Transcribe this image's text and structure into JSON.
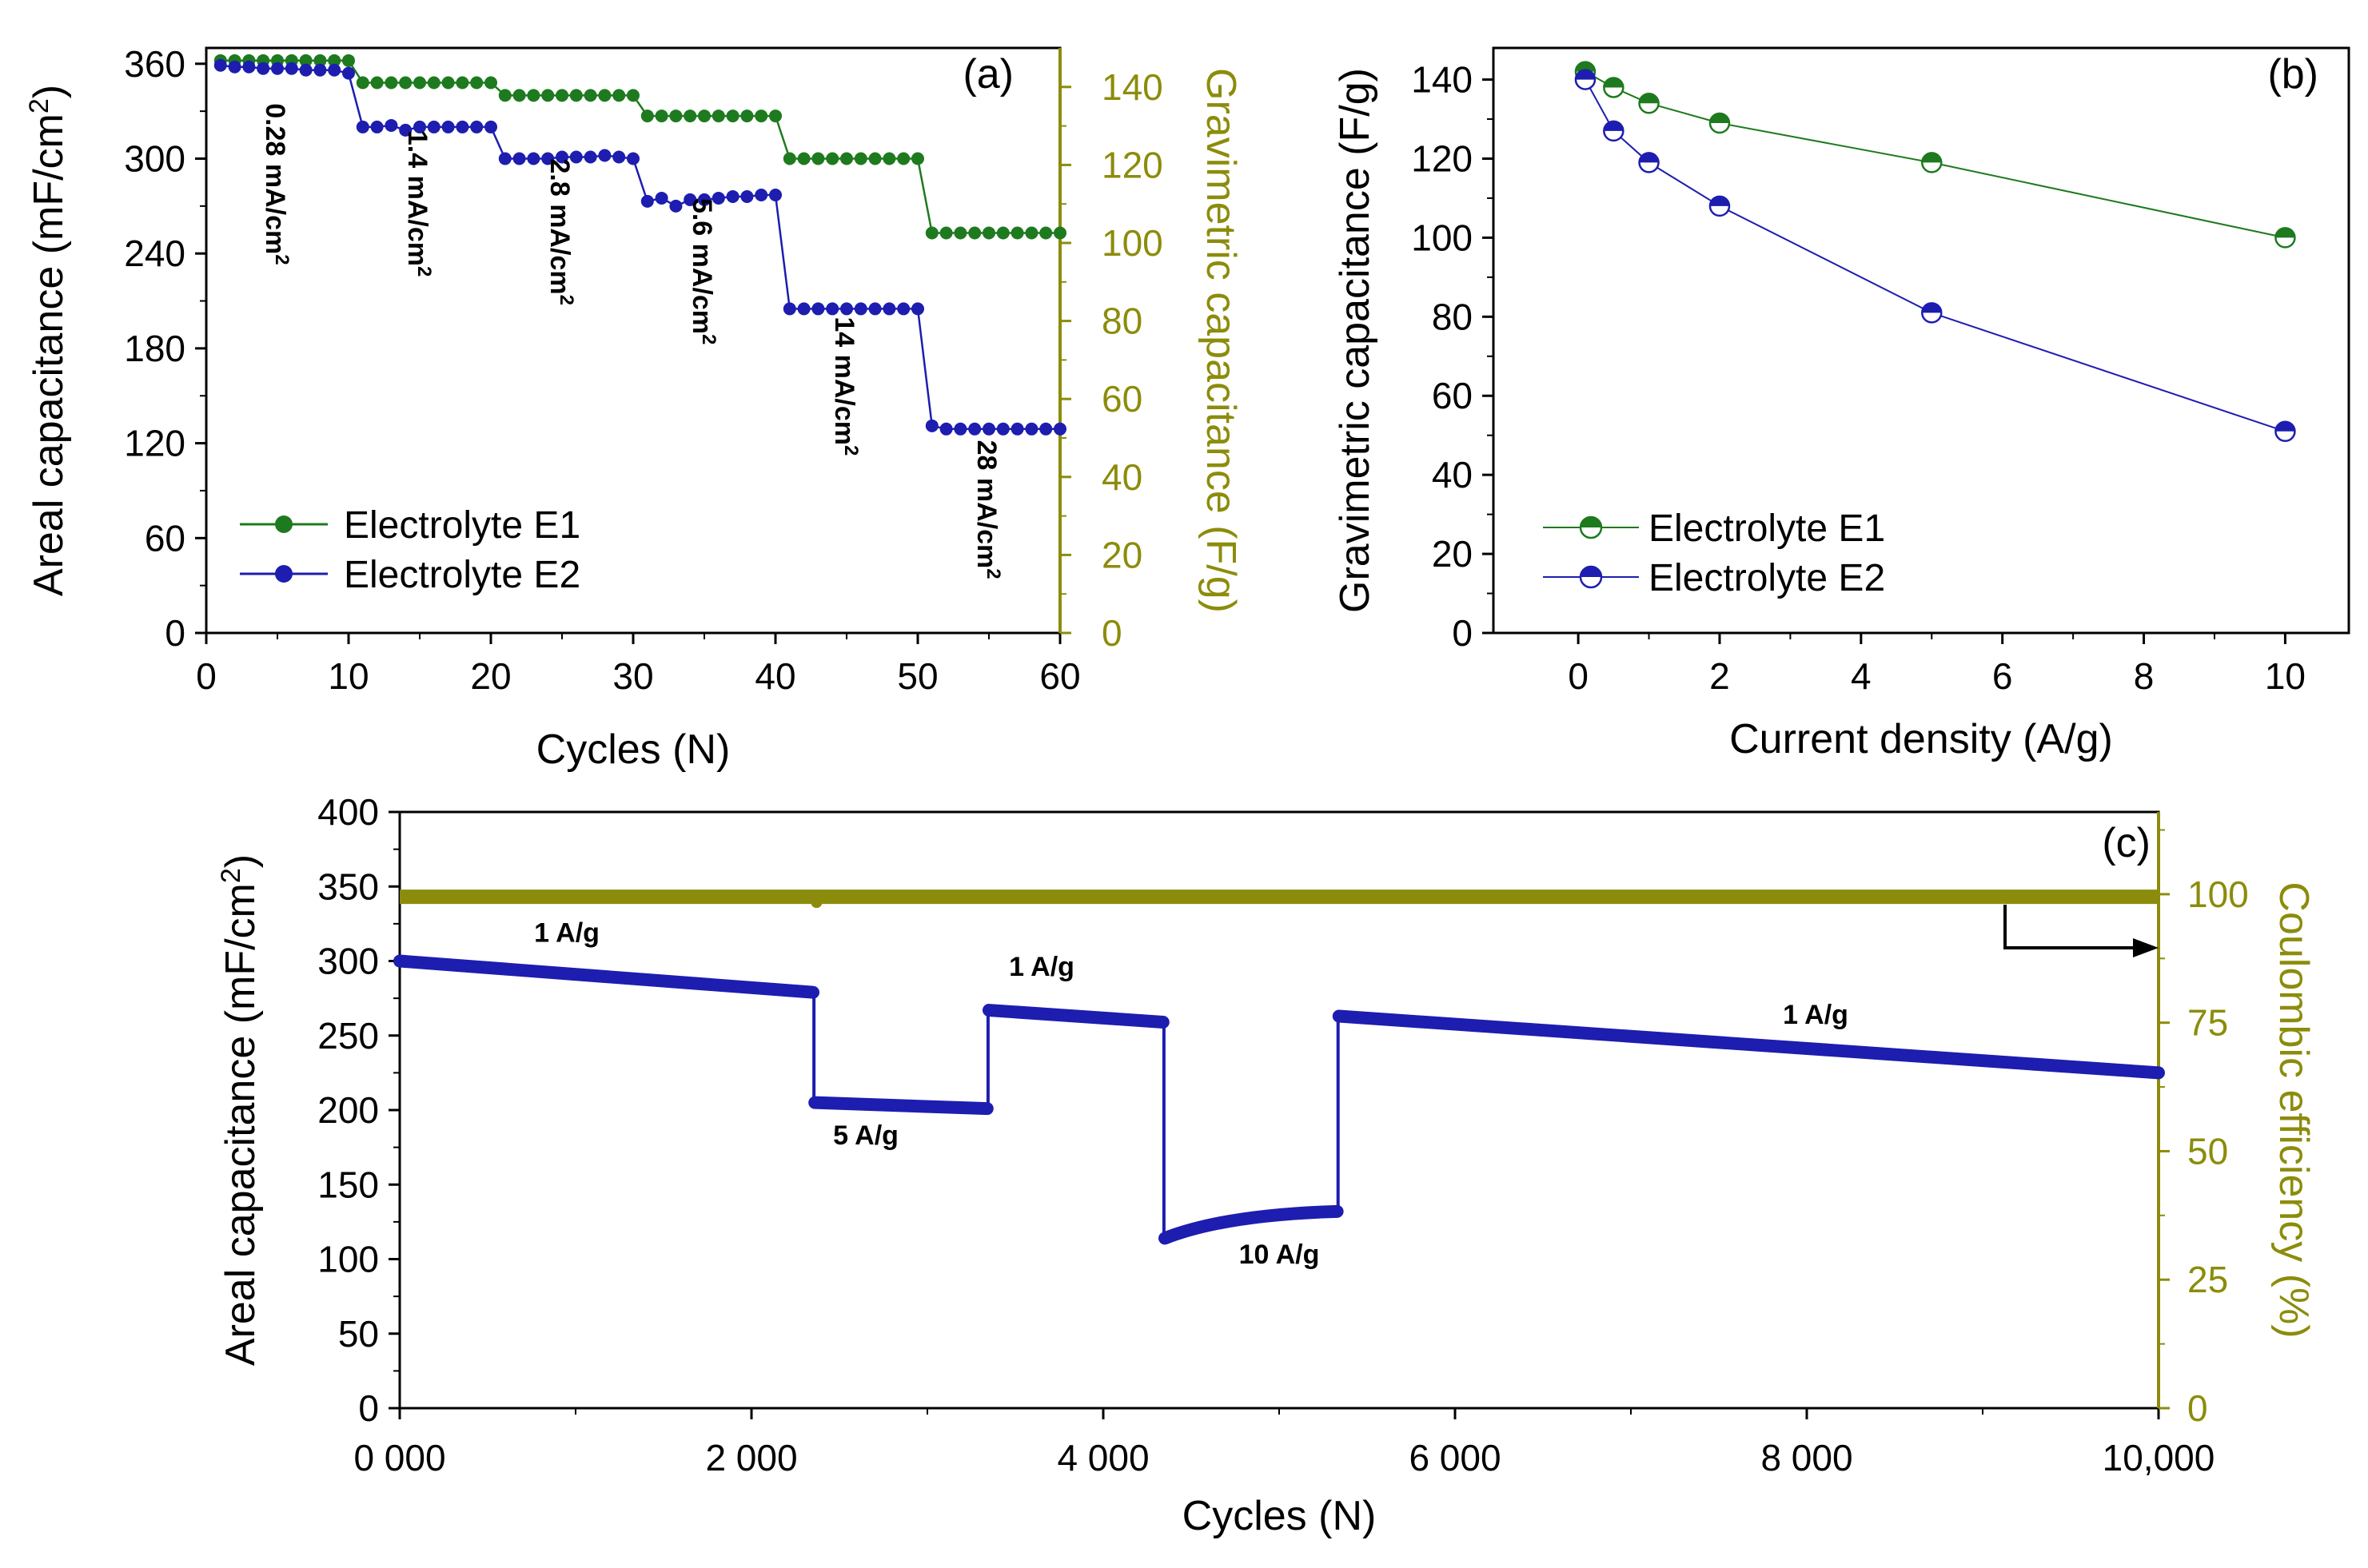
{
  "colors": {
    "e1": "#1e7a1e",
    "e2": "#1d1db0",
    "olive": "#8c8c0c",
    "axis": "#000000"
  },
  "chart_data": [
    {
      "id": "a",
      "type": "scatter",
      "panel_label": "(a)",
      "xlabel": "Cycles (N)",
      "ylabel_left": "Areal capacitance (mF/cm",
      "ylabel_left_sup": "2",
      "ylabel_left_end": ")",
      "ylabel_right": "Gravimetric capacitance  (F/g)",
      "xlim": [
        0,
        60
      ],
      "ylim_left": [
        0,
        370
      ],
      "ylim_right": [
        0,
        150
      ],
      "x_ticks": [
        "0",
        "10",
        "20",
        "30",
        "40",
        "50",
        "60"
      ],
      "y_ticks_left": [
        "0",
        "60",
        "120",
        "180",
        "240",
        "300",
        "360"
      ],
      "y_ticks_right": [
        "0",
        "20",
        "40",
        "60",
        "80",
        "100",
        "120",
        "140"
      ],
      "series": [
        {
          "name": "Electrolyte E1",
          "x": [
            1,
            2,
            3,
            4,
            5,
            6,
            7,
            8,
            9,
            10,
            11,
            12,
            13,
            14,
            15,
            16,
            17,
            18,
            19,
            20,
            21,
            22,
            23,
            24,
            25,
            26,
            27,
            28,
            29,
            30,
            31,
            32,
            33,
            34,
            35,
            36,
            37,
            38,
            39,
            40,
            41,
            42,
            43,
            44,
            45,
            46,
            47,
            48,
            49,
            50,
            51,
            52,
            53,
            54,
            55,
            56,
            57,
            58,
            59,
            60
          ],
          "values": [
            362,
            362,
            362,
            362,
            362,
            362,
            362,
            362,
            362,
            362,
            348,
            348,
            348,
            348,
            348,
            348,
            348,
            348,
            348,
            348,
            340,
            340,
            340,
            340,
            340,
            340,
            340,
            340,
            340,
            340,
            327,
            327,
            327,
            327,
            327,
            327,
            327,
            327,
            327,
            327,
            300,
            300,
            300,
            300,
            300,
            300,
            300,
            300,
            300,
            300,
            253,
            253,
            253,
            253,
            253,
            253,
            253,
            253,
            253,
            253
          ]
        },
        {
          "name": "Electrolyte E2",
          "x": [
            1,
            2,
            3,
            4,
            5,
            6,
            7,
            8,
            9,
            10,
            11,
            12,
            13,
            14,
            15,
            16,
            17,
            18,
            19,
            20,
            21,
            22,
            23,
            24,
            25,
            26,
            27,
            28,
            29,
            30,
            31,
            32,
            33,
            34,
            35,
            36,
            37,
            38,
            39,
            40,
            41,
            42,
            43,
            44,
            45,
            46,
            47,
            48,
            49,
            50,
            51,
            52,
            53,
            54,
            55,
            56,
            57,
            58,
            59,
            60
          ],
          "values": [
            359,
            358,
            358,
            357,
            357,
            357,
            356,
            356,
            356,
            354,
            320,
            320,
            321,
            318,
            320,
            320,
            320,
            320,
            320,
            320,
            300,
            300,
            300,
            300,
            301,
            301,
            301,
            302,
            301,
            300,
            273,
            275,
            270,
            274,
            274,
            275,
            276,
            276,
            277,
            277,
            205,
            205,
            205,
            205,
            205,
            205,
            205,
            205,
            205,
            205,
            131,
            129,
            129,
            129,
            129,
            129,
            129,
            129,
            129,
            129
          ]
        }
      ],
      "annotations": [
        {
          "text": "0.28 mA/cm",
          "sup": "2",
          "x": 4.2,
          "y": 335
        },
        {
          "text": "1.4 mA/cm",
          "sup": "2",
          "x": 14.2,
          "y": 318
        },
        {
          "text": "2.8 mA/cm",
          "sup": "2",
          "x": 24.2,
          "y": 300
        },
        {
          "text": "5.6 mA/cm",
          "sup": "2",
          "x": 34.2,
          "y": 275
        },
        {
          "text": "14 mA/cm",
          "sup": "2",
          "x": 44.2,
          "y": 200
        },
        {
          "text": "28 mA/cm",
          "sup": "2",
          "x": 54.2,
          "y": 122
        }
      ],
      "legend": [
        "Electrolyte E1",
        "Electrolyte E2"
      ],
      "legend_position": "bottom-left"
    },
    {
      "id": "b",
      "type": "line",
      "panel_label": "(b)",
      "xlabel": "Current density (A/g)",
      "ylabel": "Gravimetric capacitance (F/g)",
      "xlim": [
        -1.2,
        10.9
      ],
      "ylim": [
        0,
        148
      ],
      "x_ticks": [
        "0",
        "2",
        "4",
        "6",
        "8",
        "10"
      ],
      "y_ticks": [
        "0",
        "20",
        "40",
        "60",
        "80",
        "100",
        "120",
        "140"
      ],
      "series": [
        {
          "name": "Electrolyte E1",
          "x": [
            0.1,
            0.5,
            1,
            2,
            5,
            10
          ],
          "values": [
            142,
            138,
            134,
            129,
            119,
            100
          ]
        },
        {
          "name": "Electrolyte E2",
          "x": [
            0.1,
            0.5,
            1,
            2,
            5,
            10
          ],
          "values": [
            140,
            127,
            119,
            108,
            81,
            51
          ]
        }
      ],
      "legend": [
        "Electrolyte E1",
        "Electrolyte E2"
      ],
      "legend_position": "bottom-left"
    },
    {
      "id": "c",
      "type": "scatter",
      "panel_label": "(c)",
      "xlabel": "Cycles (N)",
      "ylabel_left": "Areal capacitance (mF/cm",
      "ylabel_left_sup": "2",
      "ylabel_left_end": ")",
      "ylabel_right": "Coulombic efficiency (%)",
      "xlim": [
        0,
        10000
      ],
      "ylim_left": [
        0,
        400
      ],
      "ylim_right": [
        0,
        116
      ],
      "x_ticks": [
        "0 000",
        "2 000",
        "4 000",
        "6 000",
        "8 000",
        "10,000"
      ],
      "y_ticks_left": [
        "0",
        "50",
        "100",
        "150",
        "200",
        "250",
        "300",
        "350",
        "400"
      ],
      "y_ticks_right": [
        "0",
        "25",
        "50",
        "75",
        "100"
      ],
      "series": [
        {
          "name": "Areal capacitance",
          "segments": [
            {
              "x": [
                0,
                2350
              ],
              "values": [
                300,
                279
              ]
            },
            {
              "x": [
                2360,
                3340
              ],
              "values": [
                205,
                201
              ]
            },
            {
              "x": [
                3350,
                4340
              ],
              "values": [
                267,
                259
              ]
            },
            {
              "x": [
                4350,
                5330
              ],
              "values": [
                114,
                132
              ]
            },
            {
              "x": [
                5340,
                10000
              ],
              "values": [
                263,
                225
              ]
            }
          ]
        },
        {
          "name": "Coulombic efficiency",
          "x": [
            0,
            10000
          ],
          "values": [
            99.5,
            99.5
          ]
        }
      ],
      "annotations": [
        {
          "text": "1 A/g",
          "x": 950,
          "y": 313
        },
        {
          "text": "5 A/g",
          "x": 2650,
          "y": 177
        },
        {
          "text": "1 A/g",
          "x": 3650,
          "y": 290
        },
        {
          "text": "10 A/g",
          "x": 5000,
          "y": 97
        },
        {
          "text": "1 A/g",
          "x": 8050,
          "y": 258
        }
      ]
    }
  ]
}
